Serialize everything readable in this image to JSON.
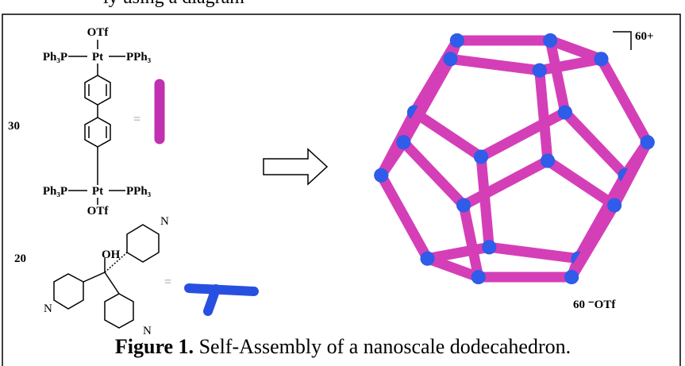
{
  "header": {
    "clipped_text": "ly using a diagram"
  },
  "linker": {
    "count": "30",
    "top_group": "OTf",
    "left_ligand": "Ph₃P",
    "metal": "Pt",
    "right_ligand": "PPh₃",
    "bottom_group": "OTf",
    "equals": "="
  },
  "vertex": {
    "count": "20",
    "hydroxyl": "OH",
    "n_top": "N",
    "n_left": "N",
    "n_bottom": "N",
    "equals": "="
  },
  "product": {
    "charge": "60+",
    "counterion": "60 ⁻OTf"
  },
  "caption": {
    "label": "Figure 1.",
    "text": " Self-Assembly of a nanoscale dodecahedron."
  }
}
